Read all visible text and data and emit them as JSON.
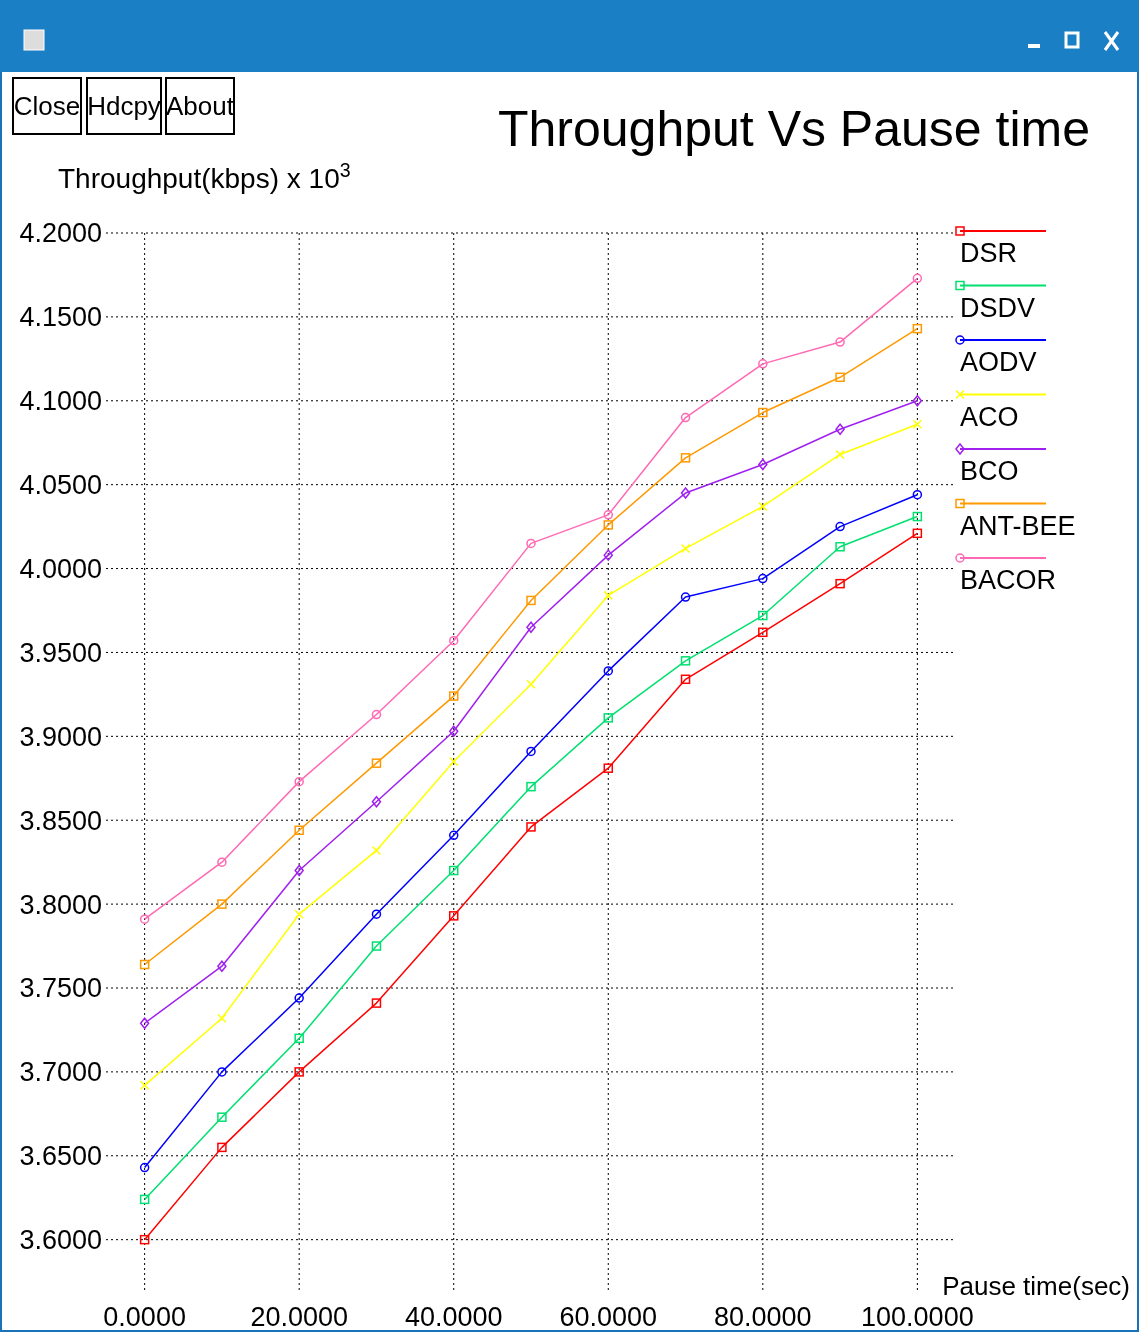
{
  "chart_data": {
    "type": "line",
    "title": "Throughput Vs Pause time",
    "xlabel": "Pause time(sec)",
    "ylabel": "Throughput(kbps) x 10$^{3}$",
    "annotations": [
      "Close",
      "Hdcpy",
      "About"
    ],
    "x": [
      0,
      10,
      20,
      30,
      40,
      50,
      60,
      70,
      80,
      90,
      100
    ],
    "xlim": [
      -5,
      105
    ],
    "ylim": [
      3.57,
      4.2
    ],
    "xticks": [
      {
        "value": 0,
        "label": "0.0000"
      },
      {
        "value": 20,
        "label": "20.0000"
      },
      {
        "value": 40,
        "label": "40.0000"
      },
      {
        "value": 60,
        "label": "60.0000"
      },
      {
        "value": 80,
        "label": "80.0000"
      },
      {
        "value": 100,
        "label": "100.0000"
      }
    ],
    "yticks": [
      {
        "value": 3.6,
        "label": "3.6000"
      },
      {
        "value": 3.65,
        "label": "3.6500"
      },
      {
        "value": 3.7,
        "label": "3.7000"
      },
      {
        "value": 3.75,
        "label": "3.7500"
      },
      {
        "value": 3.8,
        "label": "3.8000"
      },
      {
        "value": 3.85,
        "label": "3.8500"
      },
      {
        "value": 3.9,
        "label": "3.9000"
      },
      {
        "value": 3.95,
        "label": "3.9500"
      },
      {
        "value": 4.0,
        "label": "4.0000"
      },
      {
        "value": 4.05,
        "label": "4.0500"
      },
      {
        "value": 4.1,
        "label": "4.1000"
      },
      {
        "value": 4.15,
        "label": "4.1500"
      },
      {
        "value": 4.2,
        "label": "4.2000"
      }
    ],
    "grid": true,
    "legend": "right",
    "line_style": "solid",
    "series": [
      {
        "name": "DSR",
        "color": "#ff0000",
        "marker": "square",
        "values": [
          3.6,
          3.655,
          3.7,
          3.741,
          3.793,
          3.846,
          3.881,
          3.934,
          3.962,
          3.991,
          4.021
        ]
      },
      {
        "name": "DSDV",
        "color": "#00e070",
        "marker": "square",
        "values": [
          3.624,
          3.673,
          3.72,
          3.775,
          3.82,
          3.87,
          3.911,
          3.945,
          3.972,
          4.013,
          4.031
        ]
      },
      {
        "name": "AODV",
        "color": "#0000ff",
        "marker": "circle",
        "values": [
          3.643,
          3.7,
          3.744,
          3.794,
          3.841,
          3.891,
          3.939,
          3.983,
          3.994,
          4.025,
          4.044
        ]
      },
      {
        "name": "ACO",
        "color": "#ffff00",
        "marker": "cross",
        "values": [
          3.692,
          3.732,
          3.794,
          3.832,
          3.885,
          3.931,
          3.984,
          4.012,
          4.037,
          4.068,
          4.086
        ]
      },
      {
        "name": "BCO",
        "color": "#a020f0",
        "marker": "diamond",
        "values": [
          3.729,
          3.763,
          3.82,
          3.861,
          3.903,
          3.965,
          4.008,
          4.045,
          4.062,
          4.083,
          4.1
        ]
      },
      {
        "name": "ANT-BEE",
        "color": "#ff9900",
        "marker": "square",
        "values": [
          3.764,
          3.8,
          3.844,
          3.884,
          3.924,
          3.981,
          4.026,
          4.066,
          4.093,
          4.114,
          4.143
        ]
      },
      {
        "name": "BACOR",
        "color": "#ff69b4",
        "marker": "circle",
        "values": [
          3.791,
          3.825,
          3.873,
          3.913,
          3.957,
          4.015,
          4.032,
          4.09,
          4.122,
          4.135,
          4.173
        ]
      }
    ]
  }
}
